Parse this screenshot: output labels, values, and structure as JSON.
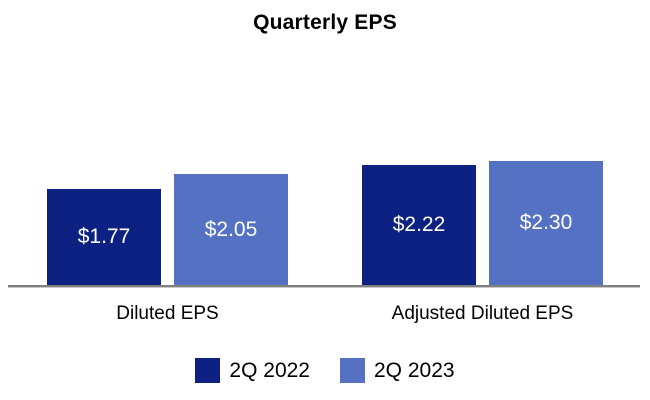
{
  "title": "Quarterly EPS",
  "chart_data": {
    "type": "bar",
    "title": "Quarterly EPS",
    "xlabel": "",
    "ylabel": "",
    "categories": [
      "Diluted EPS",
      "Adjusted Diluted EPS"
    ],
    "series": [
      {
        "name": "2Q 2022",
        "color": "#0D2183",
        "values": [
          1.77,
          2.22
        ],
        "labels": [
          "$1.77",
          "$2.22"
        ]
      },
      {
        "name": "2Q 2023",
        "color": "#5571C4",
        "values": [
          2.05,
          2.3
        ],
        "labels": [
          "$2.05",
          "$2.30"
        ]
      }
    ],
    "ylim": [
      0,
      3.5
    ],
    "grid": false,
    "axis_ticks": "none",
    "legend_position": "bottom",
    "value_label_color": "#FFFFFF",
    "axis_line_color": "#7F7F7F"
  }
}
